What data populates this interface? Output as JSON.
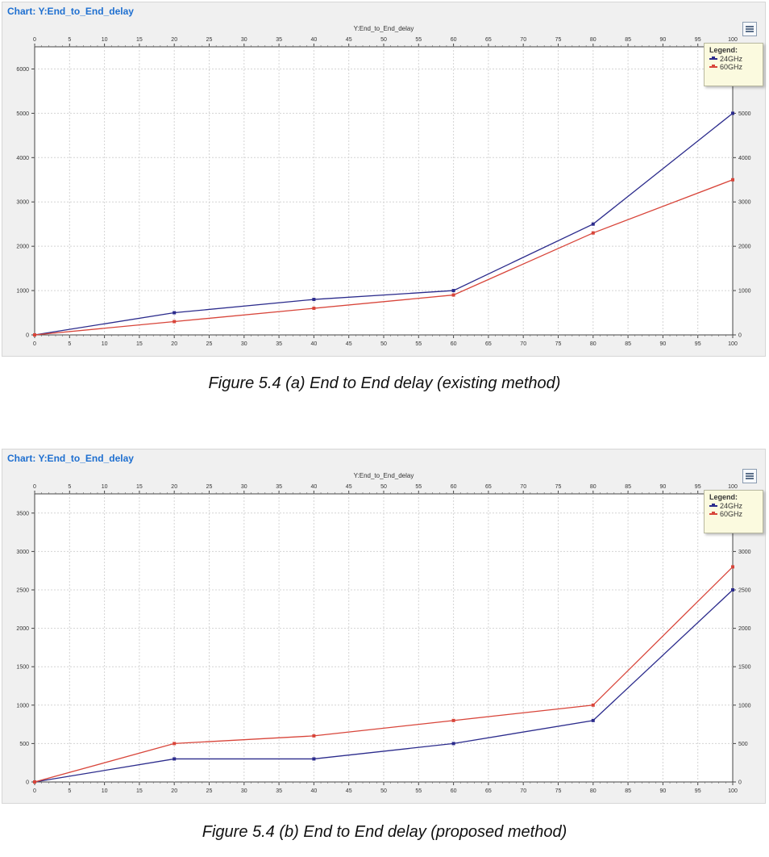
{
  "figures": [
    {
      "panel_title": "Chart: Y:End_to_End_delay",
      "caption": "Figure 5.4 (a) End to End delay (existing method)",
      "legend_title": "Legend:"
    },
    {
      "panel_title": "Chart: Y:End_to_End_delay",
      "caption": "Figure 5.4 (b) End to End delay (proposed method)",
      "legend_title": "Legend:"
    }
  ],
  "chart_data": [
    {
      "type": "line",
      "title": "Y:End_to_End_delay",
      "xlim": [
        0,
        100
      ],
      "x_ticks": [
        0,
        5,
        10,
        15,
        20,
        25,
        30,
        35,
        40,
        45,
        50,
        55,
        60,
        65,
        70,
        75,
        80,
        85,
        90,
        95,
        100
      ],
      "ylim": [
        0,
        6500
      ],
      "y_ticks": [
        0,
        1000,
        2000,
        3000,
        4000,
        5000,
        6000
      ],
      "y_ticks_right": [
        0,
        1000,
        2000,
        3000,
        4000,
        5000
      ],
      "grid": true,
      "legend_position": "top-right",
      "x": [
        0,
        20,
        40,
        60,
        80,
        100
      ],
      "series": [
        {
          "name": "24GHz",
          "color": "#2b2b8c",
          "values": [
            0,
            500,
            800,
            1000,
            2500,
            5000
          ]
        },
        {
          "name": "60GHz",
          "color": "#d8453a",
          "values": [
            0,
            300,
            600,
            900,
            2300,
            3500
          ]
        }
      ]
    },
    {
      "type": "line",
      "title": "Y:End_to_End_delay",
      "xlim": [
        0,
        100
      ],
      "x_ticks": [
        0,
        5,
        10,
        15,
        20,
        25,
        30,
        35,
        40,
        45,
        50,
        55,
        60,
        65,
        70,
        75,
        80,
        85,
        90,
        95,
        100
      ],
      "ylim": [
        0,
        3750
      ],
      "y_ticks": [
        0,
        500,
        1000,
        1500,
        2000,
        2500,
        3000,
        3500
      ],
      "y_ticks_right": [
        0,
        500,
        1000,
        1500,
        2000,
        2500,
        3000
      ],
      "grid": true,
      "legend_position": "top-right",
      "x": [
        0,
        20,
        40,
        60,
        80,
        100
      ],
      "series": [
        {
          "name": "24GHz",
          "color": "#2b2b8c",
          "values": [
            0,
            300,
            300,
            500,
            800,
            2500
          ]
        },
        {
          "name": "60GHz",
          "color": "#d8453a",
          "values": [
            0,
            500,
            600,
            800,
            1000,
            2800
          ]
        }
      ]
    }
  ]
}
